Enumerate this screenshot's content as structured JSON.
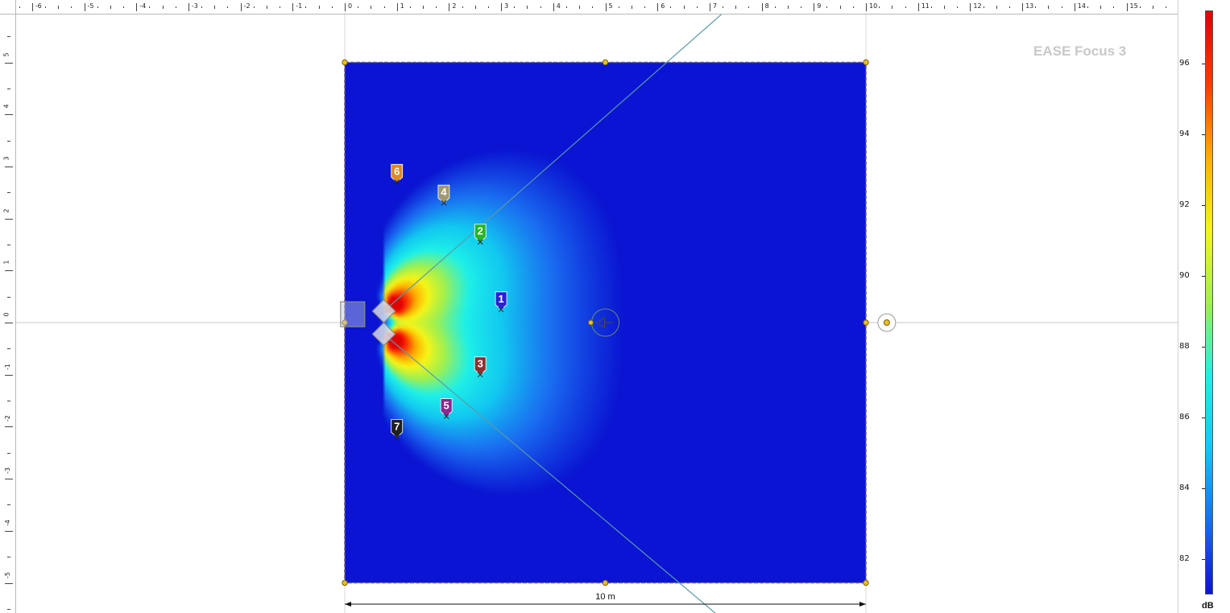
{
  "app": {
    "watermark": "EASE Focus 3"
  },
  "rulers": {
    "top_labels": [
      "-6",
      "-5",
      "-4",
      "-3",
      "-2",
      "-1",
      "0",
      "1",
      "2",
      "3",
      "4",
      "5",
      "6",
      "7",
      "8",
      "9",
      "10",
      "11",
      "12",
      "13",
      "14",
      "15"
    ],
    "left_labels": [
      "5",
      "4",
      "3",
      "2",
      "1",
      "0",
      "-1",
      "-2",
      "-3",
      "-4",
      "-5"
    ]
  },
  "plan": {
    "room_width_m": 10,
    "room_height_m": 10,
    "dimension_label": "10 m",
    "listening_plane_levels_db_range": [
      81,
      97.5
    ],
    "sources": [
      {
        "label": "1",
        "color": "#2a20d8",
        "x_m": 3.0,
        "y_m": 0.25
      },
      {
        "label": "2",
        "color": "#28b428",
        "x_m": 2.6,
        "y_m": 1.55
      },
      {
        "label": "3",
        "color": "#8a3030",
        "x_m": 2.6,
        "y_m": -1.0
      },
      {
        "label": "4",
        "color": "#a09870",
        "x_m": 1.9,
        "y_m": 2.3
      },
      {
        "label": "5",
        "color": "#8a2890",
        "x_m": 1.95,
        "y_m": -1.8
      },
      {
        "label": "6",
        "color": "#e08a20",
        "x_m": 1.0,
        "y_m": 2.7
      },
      {
        "label": "7",
        "color": "#202020",
        "x_m": 1.0,
        "y_m": -2.2
      }
    ],
    "loudspeakers": [
      {
        "name": "upper",
        "x_m": 0.75,
        "y_m": 0.22
      },
      {
        "name": "lower",
        "x_m": 0.75,
        "y_m": -0.22
      }
    ]
  },
  "colorbar": {
    "unit": "dB",
    "min": 81,
    "max": 97.5,
    "ticks": [
      "96",
      "94",
      "92",
      "90",
      "88",
      "86",
      "84",
      "82"
    ],
    "tick_values": [
      96,
      94,
      92,
      90,
      88,
      86,
      84,
      82
    ],
    "colors": [
      "#0a14d2",
      "#1a6cf0",
      "#12c8f0",
      "#1ef0e8",
      "#a0f050",
      "#f5f518",
      "#ffae00",
      "#ff3a00",
      "#e00000"
    ]
  }
}
